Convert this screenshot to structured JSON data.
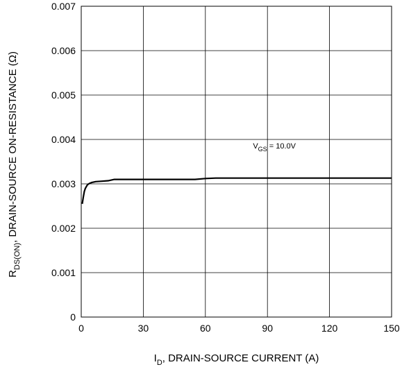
{
  "chart_data": {
    "type": "line",
    "x_axis": {
      "label_main": "I",
      "label_sub": "D",
      "label_rest": ", DRAIN-SOURCE CURRENT (A)",
      "range": [
        0,
        150
      ],
      "ticks": [
        0,
        30,
        60,
        90,
        120,
        150
      ],
      "tick_labels": [
        "0",
        "30",
        "60",
        "90",
        "120",
        "150"
      ]
    },
    "y_axis": {
      "label_main": "R",
      "label_sub": "DS(ON)",
      "label_rest": ", DRAIN-SOURCE ON-RESISTANCE (Ω)",
      "range": [
        0,
        0.007
      ],
      "ticks": [
        0,
        0.001,
        0.002,
        0.003,
        0.004,
        0.005,
        0.006,
        0.007
      ],
      "tick_labels": [
        "0",
        "0.001",
        "0.002",
        "0.003",
        "0.004",
        "0.005",
        "0.006",
        "0.007"
      ]
    },
    "grid": true,
    "annotation": {
      "main": "V",
      "sub": "GS",
      "rest": " = 10.0V",
      "x": 83,
      "y": 0.0038
    },
    "series": [
      {
        "x": [
          0.5,
          1,
          1.5,
          2,
          3,
          4,
          5,
          7,
          10,
          13,
          16,
          20,
          30,
          40,
          50,
          55,
          60,
          65,
          75,
          90,
          110,
          130,
          150
        ],
        "values": [
          0.00255,
          0.0027,
          0.00283,
          0.0029,
          0.00298,
          0.00301,
          0.00303,
          0.00305,
          0.00306,
          0.00307,
          0.0031,
          0.0031,
          0.0031,
          0.0031,
          0.0031,
          0.0031,
          0.00312,
          0.00313,
          0.00313,
          0.00313,
          0.00313,
          0.00313,
          0.00313
        ]
      }
    ]
  }
}
